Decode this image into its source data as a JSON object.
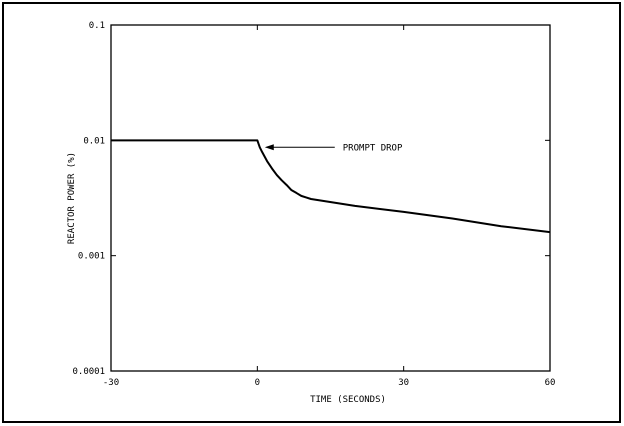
{
  "chart_data": {
    "type": "line",
    "title": "",
    "xlabel": "TIME (SECONDS)",
    "ylabel": "REACTOR POWER (%)",
    "xlim": [
      -30,
      60
    ],
    "ylim": [
      0.0001,
      0.1
    ],
    "yscale": "log",
    "grid": false,
    "x_ticks": [
      -30,
      0,
      30,
      60
    ],
    "x_tick_labels": [
      "-30",
      "0",
      "30",
      "60"
    ],
    "y_ticks": [
      0.0001,
      0.001,
      0.01,
      0.1
    ],
    "y_tick_labels": [
      "0.0001",
      "0.001",
      "0.01",
      "0.1"
    ],
    "series": [
      {
        "x": [
          -30,
          0,
          0.5,
          1,
          2,
          3,
          4,
          5,
          6,
          7,
          8,
          9,
          10,
          11,
          20,
          30,
          40,
          50,
          60
        ],
        "y": [
          0.01,
          0.01,
          0.0087,
          0.0079,
          0.0066,
          0.0057,
          0.005,
          0.0045,
          0.0041,
          0.0037,
          0.0035,
          0.0033,
          0.0032,
          0.0031,
          0.0027,
          0.0024,
          0.0021,
          0.0018,
          0.0016
        ]
      }
    ],
    "annotations": [
      {
        "text": "PROMPT DROP",
        "x": 0.5,
        "y": 0.0087
      }
    ]
  }
}
